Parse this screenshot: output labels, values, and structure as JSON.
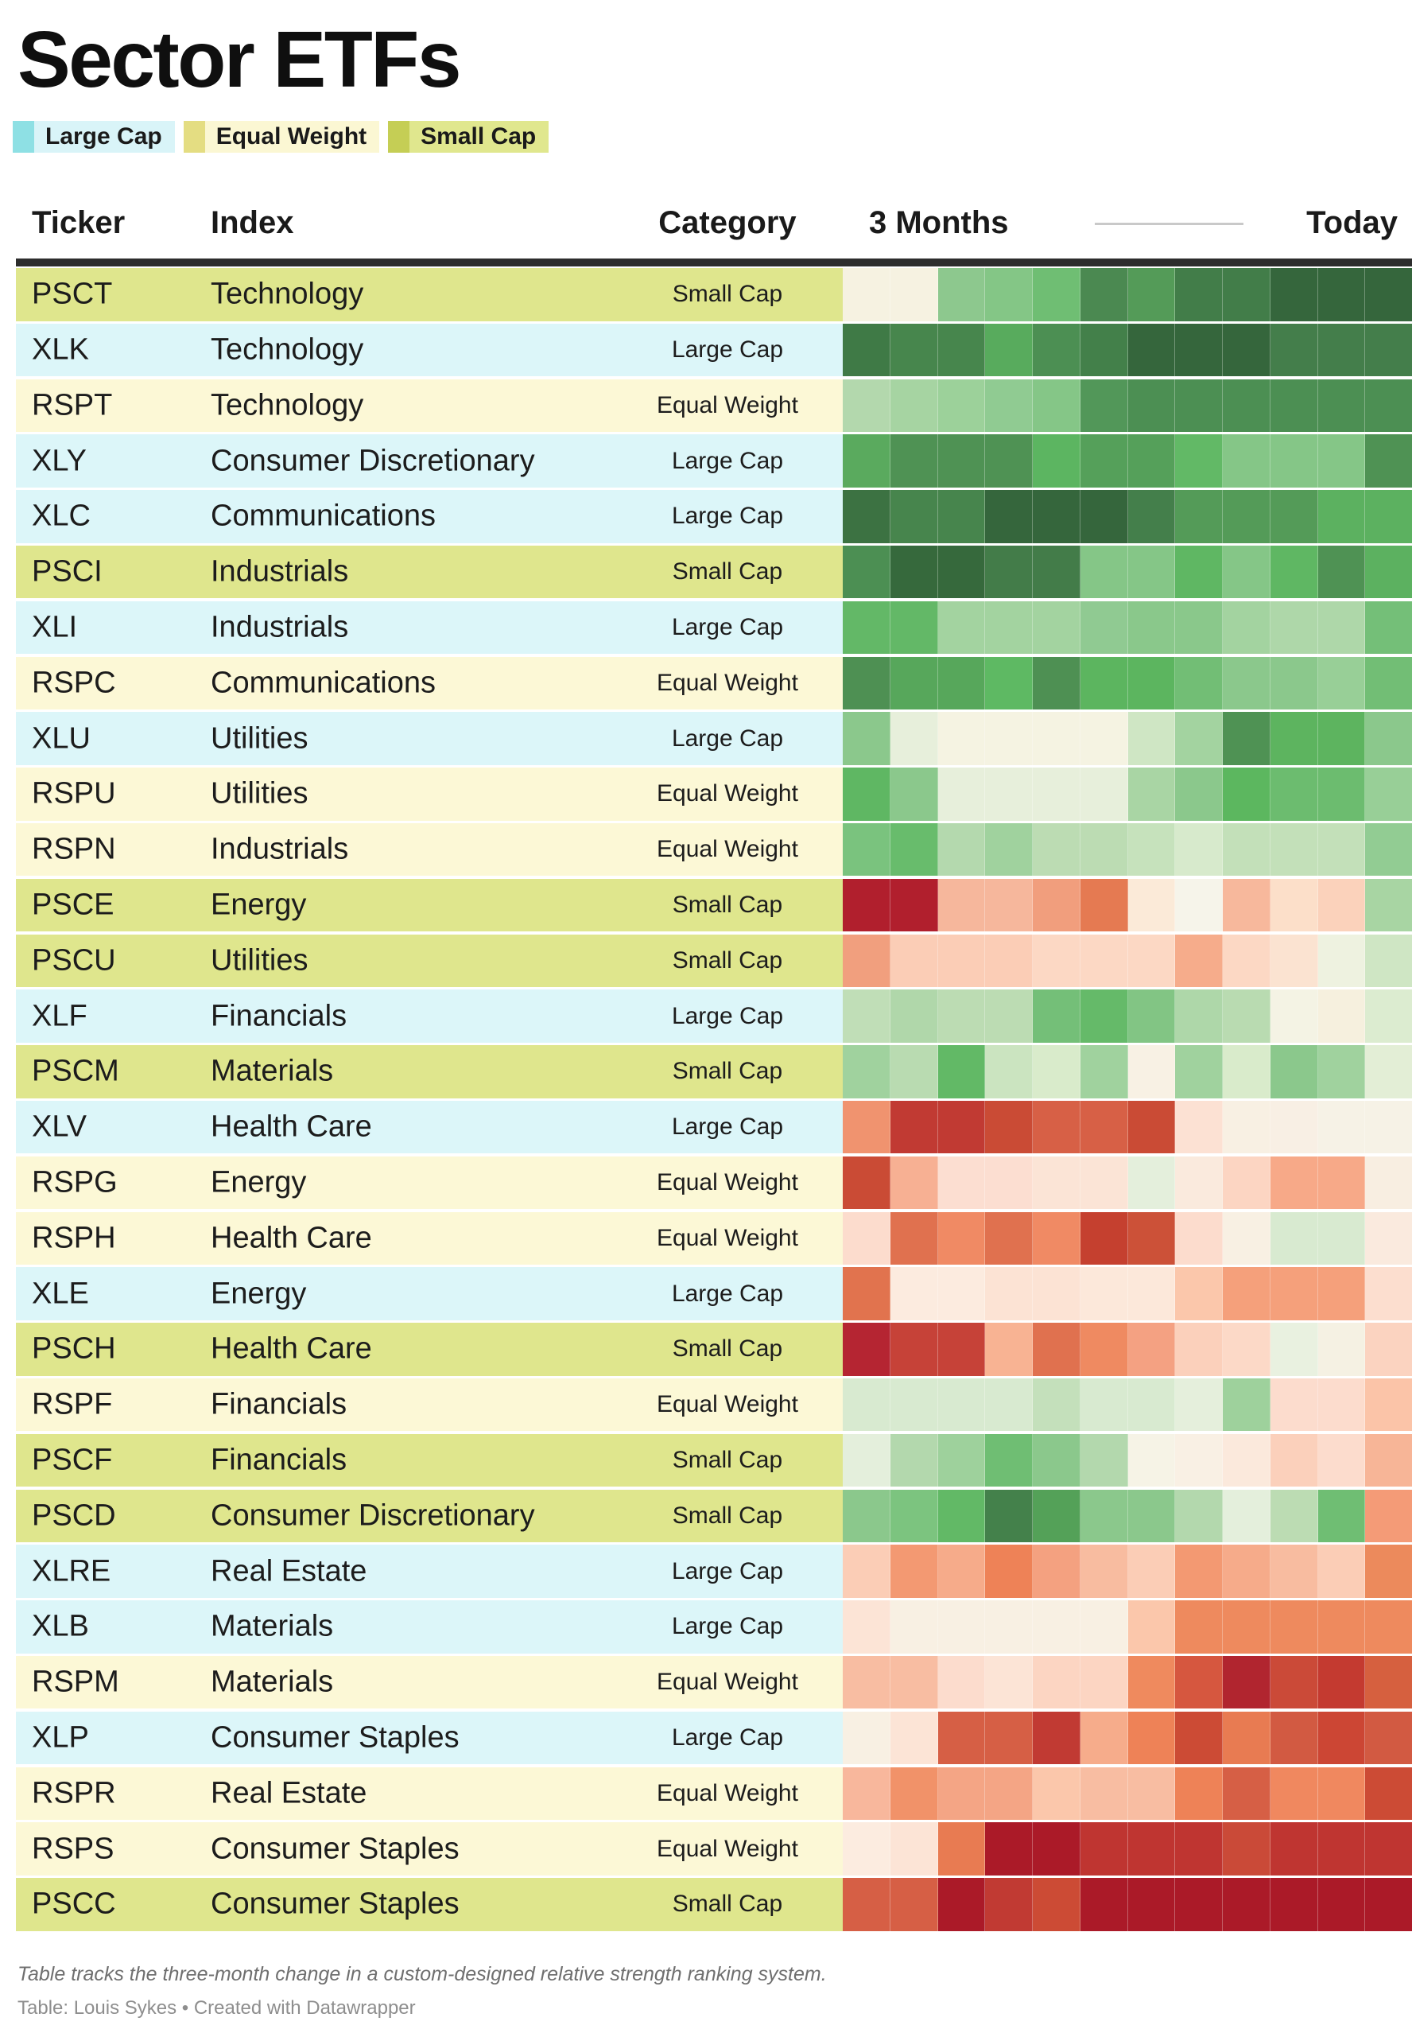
{
  "title": "Sector ETFs",
  "legend": {
    "items": [
      {
        "label": "Large Cap",
        "bar_color": "#8ee0e4",
        "bg_color": "#d9f4f8"
      },
      {
        "label": "Equal Weight",
        "bar_color": "#e4dd82",
        "bg_color": "#fbf7d3"
      },
      {
        "label": "Small Cap",
        "bar_color": "#c5ce55",
        "bg_color": "#e0e78e"
      }
    ]
  },
  "table": {
    "headers": {
      "ticker": "Ticker",
      "index": "Index",
      "category": "Category",
      "timeline_start": "3 Months",
      "timeline_end": "Today"
    }
  },
  "category_row_colors": {
    "Large Cap": "#dcf6f9",
    "Equal Weight": "#fcf8d6",
    "Small Cap": "#dfe68d"
  },
  "footer": {
    "note": "Table tracks the three-month change in a custom-designed relative strength ranking system.",
    "credit": "Table: Louis Sykes • Created with Datawrapper"
  },
  "chart_data": {
    "type": "heatmap",
    "title": "Sector ETFs",
    "columns": 12,
    "x_range_labels": [
      "3 Months",
      "Today"
    ],
    "value_encoding": "weekly relative-strength rank encoded as color, red (weak) to green (strong); no numeric labels shown",
    "rows": [
      {
        "ticker": "PSCT",
        "index": "Technology",
        "category": "Small Cap",
        "cells": [
          "#f6f2e1",
          "#f6f2e1",
          "#8dc88e",
          "#84c686",
          "#6fbe73",
          "#4b8951",
          "#549b58",
          "#427d49",
          "#427d49",
          "#35663c",
          "#35663c",
          "#35663c"
        ]
      },
      {
        "ticker": "XLK",
        "index": "Technology",
        "category": "Large Cap",
        "cells": [
          "#3f7a46",
          "#47864d",
          "#47864d",
          "#58ab5d",
          "#4c8f53",
          "#43804a",
          "#35663c",
          "#35663c",
          "#35663c",
          "#447e4b",
          "#447e4b",
          "#447e4b"
        ]
      },
      {
        "ticker": "RSPT",
        "index": "Technology",
        "category": "Equal Weight",
        "cells": [
          "#b3d8ad",
          "#a6d4a2",
          "#9cd19a",
          "#90cb92",
          "#85c687",
          "#529759",
          "#4c8f53",
          "#4c8f53",
          "#4c8f53",
          "#4c8f53",
          "#4c8f53",
          "#4c8f53"
        ]
      },
      {
        "ticker": "XLY",
        "index": "Consumer Discretionary",
        "category": "Large Cap",
        "cells": [
          "#5aaa5e",
          "#4f9254",
          "#4f9254",
          "#4f9254",
          "#5cb561",
          "#55a05a",
          "#55a05a",
          "#62b966",
          "#85c687",
          "#85c687",
          "#85c687",
          "#4f9254"
        ]
      },
      {
        "ticker": "XLC",
        "index": "Communications",
        "category": "Large Cap",
        "cells": [
          "#3c7242",
          "#47854d",
          "#47854d",
          "#35663c",
          "#35663c",
          "#35663c",
          "#447f4b",
          "#549b58",
          "#549b58",
          "#549b58",
          "#5cb160",
          "#5cb160"
        ]
      },
      {
        "ticker": "PSCI",
        "index": "Industrials",
        "category": "Small Cap",
        "cells": [
          "#4c8f53",
          "#36693c",
          "#36693c",
          "#437c49",
          "#437c49",
          "#85c687",
          "#85c687",
          "#5fb763",
          "#85c687",
          "#5fb763",
          "#4f9254",
          "#5cb160"
        ]
      },
      {
        "ticker": "XLI",
        "index": "Industrials",
        "category": "Large Cap",
        "cells": [
          "#63b867",
          "#63b867",
          "#a3d3a0",
          "#a3d3a0",
          "#a3d3a0",
          "#90ca92",
          "#8ac88b",
          "#8ac88b",
          "#a3d3a0",
          "#aed7a9",
          "#aed7a9",
          "#74bf78"
        ]
      },
      {
        "ticker": "RSPC",
        "index": "Communications",
        "category": "Equal Weight",
        "cells": [
          "#4e9053",
          "#57a75b",
          "#57a75b",
          "#5eb963",
          "#4e9053",
          "#5cb55f",
          "#5cb55f",
          "#72be75",
          "#8bc88c",
          "#8bc88c",
          "#98cf97",
          "#72be75"
        ]
      },
      {
        "ticker": "XLU",
        "index": "Utilities",
        "category": "Large Cap",
        "cells": [
          "#8bc88c",
          "#e7efdb",
          "#f5f3e2",
          "#f5f3e2",
          "#f5f3e2",
          "#f5f3e2",
          "#cfe6c4",
          "#a3d3a0",
          "#4f9254",
          "#5db45f",
          "#5db45f",
          "#8bc88c"
        ]
      },
      {
        "ticker": "RSPU",
        "index": "Utilities",
        "category": "Equal Weight",
        "cells": [
          "#5fb763",
          "#8bc88c",
          "#e7efdb",
          "#e7efdb",
          "#e7efdb",
          "#e7efdb",
          "#a9d5a4",
          "#8bc88c",
          "#5cb75f",
          "#6cbc6f",
          "#6cbc6f",
          "#98cf97"
        ]
      },
      {
        "ticker": "RSPN",
        "index": "Industrials",
        "category": "Equal Weight",
        "cells": [
          "#7ac37e",
          "#68bc6c",
          "#b4d9ae",
          "#a0d29e",
          "#bcdcb3",
          "#bcdcb3",
          "#c6e2bc",
          "#d7eacc",
          "#c3e0b9",
          "#c3e0b9",
          "#c3e0b9",
          "#92cc93"
        ]
      },
      {
        "ticker": "PSCE",
        "index": "Energy",
        "category": "Small Cap",
        "cells": [
          "#b11f2d",
          "#b11f2d",
          "#f6b79c",
          "#f6b79c",
          "#f19e7d",
          "#e57a52",
          "#fbead8",
          "#f6f4ea",
          "#f7b89c",
          "#fcdfc9",
          "#fbd2bb",
          "#a8d5a3"
        ]
      },
      {
        "ticker": "PSCU",
        "index": "Utilities",
        "category": "Small Cap",
        "cells": [
          "#f19f7e",
          "#fbcdb6",
          "#fbcdb6",
          "#fbcdb6",
          "#fcd8c4",
          "#fcd8c4",
          "#fcd8c4",
          "#f6ac8b",
          "#fcd8c4",
          "#fbe3d1",
          "#eef2e0",
          "#cfe6c4"
        ]
      },
      {
        "ticker": "XLF",
        "index": "Financials",
        "category": "Large Cap",
        "cells": [
          "#c0deb7",
          "#b0d7aa",
          "#bcdcb3",
          "#bcdcb3",
          "#74bf78",
          "#65ba69",
          "#82c584",
          "#aed7a9",
          "#b9dbb1",
          "#f4f3e4",
          "#f6f0de",
          "#dcecd0"
        ]
      },
      {
        "ticker": "PSCM",
        "index": "Materials",
        "category": "Small Cap",
        "cells": [
          "#a0d29e",
          "#b9dbb1",
          "#62b966",
          "#cbe4c0",
          "#d9ebcb",
          "#a0d29e",
          "#f8f1e4",
          "#a0d29e",
          "#d9ebcb",
          "#8bc88c",
          "#a0d29e",
          "#e3eed6"
        ]
      },
      {
        "ticker": "XLV",
        "index": "Health Care",
        "category": "Large Cap",
        "cells": [
          "#f0936f",
          "#c13a33",
          "#c13a33",
          "#ca4b35",
          "#d76046",
          "#d76046",
          "#ca4b35",
          "#fce1d3",
          "#f8f0e3",
          "#f8efe4",
          "#f6f2e6",
          "#f6f2e6"
        ]
      },
      {
        "ticker": "RSPG",
        "index": "Energy",
        "category": "Equal Weight",
        "cells": [
          "#ca4b35",
          "#f7b093",
          "#fcded1",
          "#fcded1",
          "#fbe4d6",
          "#fbe4d6",
          "#e4efdc",
          "#faeadd",
          "#fcd5c2",
          "#f7a988",
          "#f7a988",
          "#f8eee1"
        ]
      },
      {
        "ticker": "RSPH",
        "index": "Health Care",
        "category": "Equal Weight",
        "cells": [
          "#fcdccd",
          "#e0714f",
          "#f08a64",
          "#e0714f",
          "#f08a64",
          "#c5402f",
          "#cc5138",
          "#fcdccd",
          "#f8f0e3",
          "#d8ead0",
          "#d8ead0",
          "#faeade"
        ]
      },
      {
        "ticker": "XLE",
        "index": "Energy",
        "category": "Large Cap",
        "cells": [
          "#e1734e",
          "#fcebdf",
          "#fcebdf",
          "#fce3d4",
          "#fce3d4",
          "#fce8da",
          "#fce8da",
          "#fbc7ab",
          "#f5a07b",
          "#f5a07b",
          "#f5a07b",
          "#fcdecf"
        ]
      },
      {
        "ticker": "PSCH",
        "index": "Health Care",
        "category": "Small Cap",
        "cells": [
          "#b52532",
          "#c64238",
          "#c64238",
          "#f8b393",
          "#e0714f",
          "#ef8a61",
          "#f4a182",
          "#fbd0bb",
          "#fcd9c7",
          "#e9f1e0",
          "#f5f1e3",
          "#fbd3c0"
        ]
      },
      {
        "ticker": "RSPF",
        "index": "Financials",
        "category": "Equal Weight",
        "cells": [
          "#d8ead0",
          "#d8ead0",
          "#d8ead0",
          "#d8ead0",
          "#c4e0bb",
          "#d8ead0",
          "#d8ead0",
          "#e5efdc",
          "#9ed19c",
          "#fcdccd",
          "#fcdccd",
          "#fbc4a8"
        ]
      },
      {
        "ticker": "PSCF",
        "index": "Financials",
        "category": "Small Cap",
        "cells": [
          "#e4efdc",
          "#b3d8ad",
          "#9ed19c",
          "#6fbe73",
          "#8bc88c",
          "#b3d8ad",
          "#f6f3e6",
          "#f9f0e4",
          "#fbe9dc",
          "#fbd0bb",
          "#fcdccd",
          "#f7b597"
        ]
      },
      {
        "ticker": "PSCD",
        "index": "Consumer Discretionary",
        "category": "Small Cap",
        "cells": [
          "#8bc88c",
          "#7cc47f",
          "#62b966",
          "#44814b",
          "#54a158",
          "#8bc88c",
          "#8bc88c",
          "#b3d8ad",
          "#e4efdc",
          "#bcdcb3",
          "#6fbe73",
          "#f49b77"
        ]
      },
      {
        "ticker": "XLRE",
        "index": "Real Estate",
        "category": "Large Cap",
        "cells": [
          "#fbcdb6",
          "#f39972",
          "#f6ab8a",
          "#ee8257",
          "#f4a180",
          "#f8bca0",
          "#fbcdb6",
          "#f39972",
          "#f6ab8a",
          "#f8bca0",
          "#fbcdb6",
          "#ec8a5c"
        ]
      },
      {
        "ticker": "XLB",
        "index": "Materials",
        "category": "Large Cap",
        "cells": [
          "#fce4d6",
          "#f8f0e3",
          "#f8f0e3",
          "#f8f0e3",
          "#f8f0e3",
          "#f8f0e3",
          "#fbc7ab",
          "#ee8a5e",
          "#ee8a5e",
          "#ee8a5e",
          "#ee8a5e",
          "#ee8a5e"
        ]
      },
      {
        "ticker": "RSPM",
        "index": "Materials",
        "category": "Equal Weight",
        "cells": [
          "#f8bda2",
          "#f8bda2",
          "#fcdccd",
          "#fce4d6",
          "#fcd5c2",
          "#fcd5c2",
          "#ef8a5e",
          "#d6573f",
          "#b1252f",
          "#cb4a38",
          "#c43a30",
          "#d6603f"
        ]
      },
      {
        "ticker": "XLP",
        "index": "Consumer Staples",
        "category": "Large Cap",
        "cells": [
          "#f8f0e3",
          "#fce4d6",
          "#d65f45",
          "#d65f45",
          "#c13a33",
          "#f6ac8b",
          "#ee8257",
          "#cc4b35",
          "#e87b52",
          "#d25a42",
          "#cc4634",
          "#d25a42"
        ]
      },
      {
        "ticker": "RSPR",
        "index": "Real Estate",
        "category": "Equal Weight",
        "cells": [
          "#f8b79c",
          "#f19269",
          "#f4a585",
          "#f4a585",
          "#fbc7ab",
          "#f8bda2",
          "#f8bda2",
          "#ee8257",
          "#d65f45",
          "#f0885f",
          "#f0885f",
          "#cc4b35"
        ]
      },
      {
        "ticker": "RSPS",
        "index": "Consumer Staples",
        "category": "Equal Weight",
        "cells": [
          "#fcece0",
          "#fce4d6",
          "#e87b52",
          "#ab1a28",
          "#ab1a28",
          "#bf3531",
          "#bf3531",
          "#bf3531",
          "#ca4a38",
          "#bf3531",
          "#bf3531",
          "#bf3531"
        ]
      },
      {
        "ticker": "PSCC",
        "index": "Consumer Staples",
        "category": "Small Cap",
        "cells": [
          "#d65f45",
          "#d65f45",
          "#ab1a28",
          "#c13a33",
          "#cc4b35",
          "#ab1a28",
          "#ab1a28",
          "#ab1a28",
          "#ab1a28",
          "#ab1a28",
          "#ab1a28",
          "#ab1a28"
        ]
      }
    ]
  }
}
